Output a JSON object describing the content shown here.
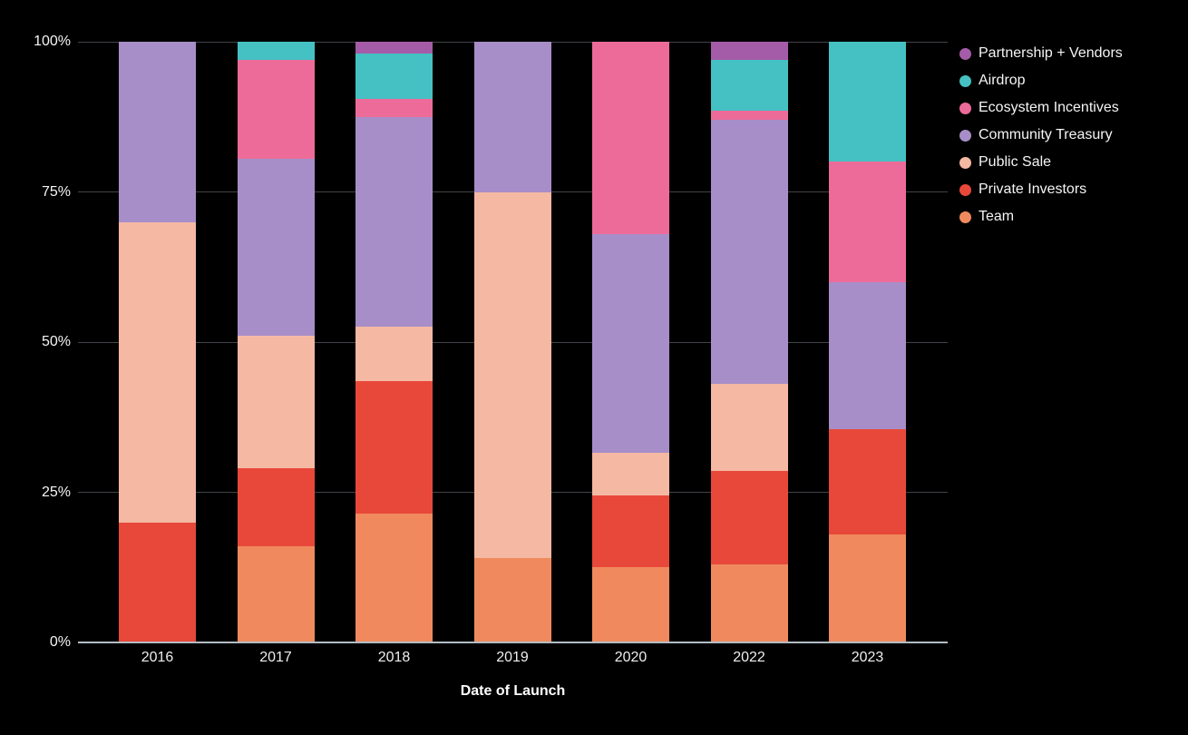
{
  "chart_data": {
    "type": "bar",
    "stacked": true,
    "title": "",
    "xlabel": "Date of Launch",
    "ylabel": "",
    "ylim": [
      0,
      100
    ],
    "grid": true,
    "legend_position": "top-right",
    "categories": [
      "2016",
      "2017",
      "2018",
      "2019",
      "2020",
      "2022",
      "2023"
    ],
    "yticks": [
      {
        "value": 0,
        "label": "0%"
      },
      {
        "value": 25,
        "label": "25%"
      },
      {
        "value": 50,
        "label": "50%"
      },
      {
        "value": 75,
        "label": "75%"
      },
      {
        "value": 100,
        "label": "100%"
      }
    ],
    "series": [
      {
        "name": "Team",
        "color": "#f08a5e",
        "values": [
          0,
          16,
          21.5,
          14,
          12.5,
          13,
          18
        ]
      },
      {
        "name": "Private Investors",
        "color": "#e8483a",
        "values": [
          20,
          13,
          22,
          0,
          12,
          15.5,
          17.5
        ]
      },
      {
        "name": "Public Sale",
        "color": "#f4b8a3",
        "values": [
          50,
          22,
          9,
          61,
          7,
          14.5,
          0
        ]
      },
      {
        "name": "Community Treasury",
        "color": "#a78ec8",
        "values": [
          30,
          29.5,
          35,
          25,
          36.5,
          44,
          24.5
        ]
      },
      {
        "name": "Ecosystem Incentives",
        "color": "#ed6b98",
        "values": [
          0,
          16.5,
          3,
          0,
          32,
          1.5,
          20
        ]
      },
      {
        "name": "Airdrop",
        "color": "#45c1c3",
        "values": [
          0,
          3,
          7.5,
          0,
          0,
          8.5,
          20
        ]
      },
      {
        "name": "Partnership + Vendors",
        "color": "#a55ca8",
        "values": [
          0,
          0,
          2,
          0,
          0,
          3,
          0
        ]
      }
    ]
  },
  "legend": {
    "items": [
      {
        "label": "Partnership + Vendors",
        "color": "#a55ca8"
      },
      {
        "label": "Airdrop",
        "color": "#45c1c3"
      },
      {
        "label": "Ecosystem Incentives",
        "color": "#ed6b98"
      },
      {
        "label": "Community Treasury",
        "color": "#a78ec8"
      },
      {
        "label": "Public Sale",
        "color": "#f4b8a3"
      },
      {
        "label": "Private Investors",
        "color": "#e8483a"
      },
      {
        "label": "Team",
        "color": "#f08a5e"
      }
    ]
  },
  "colors": {
    "background": "#000000",
    "text": "#f5f5f5",
    "gridline": "#404348",
    "axis_baseline": "#b3bcc3"
  }
}
